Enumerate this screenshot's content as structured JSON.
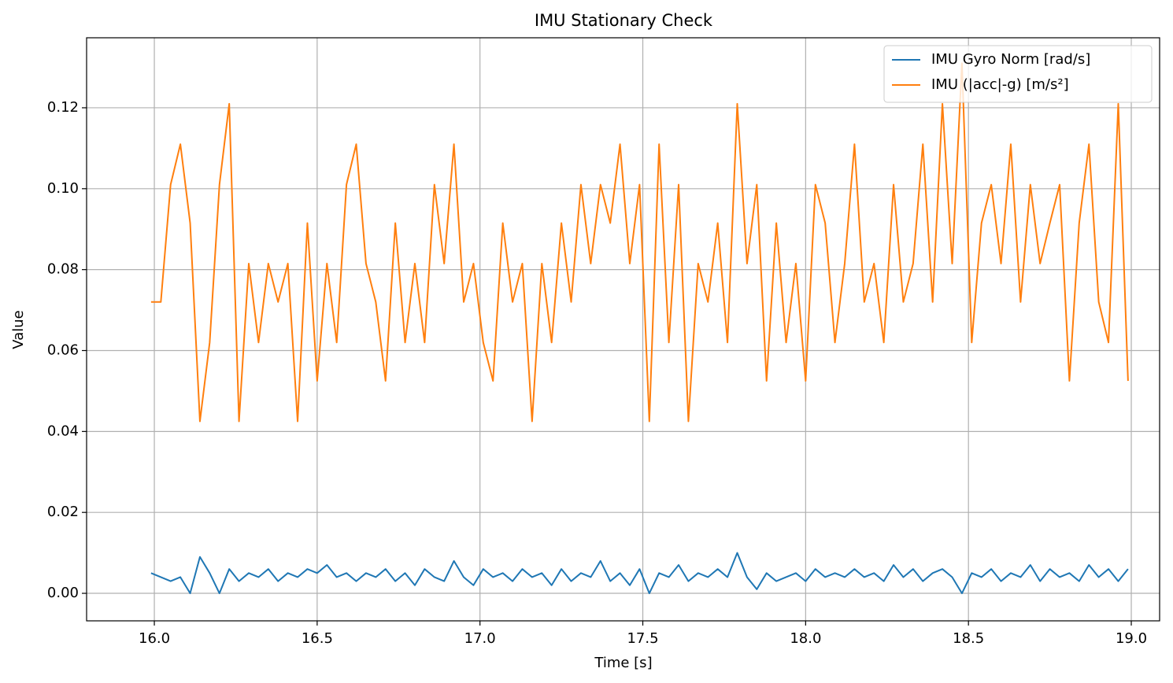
{
  "chart_data": {
    "type": "line",
    "title": "IMU Stationary Check",
    "x_label": "Time [s]",
    "y_label": "Value",
    "x": [
      15.99,
      16.02,
      16.05,
      16.08,
      16.11,
      16.14,
      16.17,
      16.2,
      16.23,
      16.26,
      16.29,
      16.32,
      16.35,
      16.38,
      16.41,
      16.44,
      16.47,
      16.5,
      16.53,
      16.56,
      16.59,
      16.62,
      16.65,
      16.68,
      16.71,
      16.74,
      16.77,
      16.8,
      16.83,
      16.86,
      16.89,
      16.92,
      16.95,
      16.98,
      17.01,
      17.04,
      17.07,
      17.1,
      17.13,
      17.16,
      17.19,
      17.22,
      17.25,
      17.28,
      17.31,
      17.34,
      17.37,
      17.4,
      17.43,
      17.46,
      17.49,
      17.52,
      17.55,
      17.58,
      17.61,
      17.64,
      17.67,
      17.7,
      17.73,
      17.76,
      17.79,
      17.82,
      17.85,
      17.88,
      17.91,
      17.94,
      17.97,
      18.0,
      18.03,
      18.06,
      18.09,
      18.12,
      18.15,
      18.18,
      18.21,
      18.24,
      18.27,
      18.3,
      18.33,
      18.36,
      18.39,
      18.42,
      18.45,
      18.48,
      18.51,
      18.54,
      18.57,
      18.6,
      18.63,
      18.66,
      18.69,
      18.72,
      18.75,
      18.78,
      18.81,
      18.84,
      18.87,
      18.9,
      18.93,
      18.96,
      18.99
    ],
    "series": [
      {
        "name": "IMU Gyro Norm [rad/s]",
        "color": "#1f77b4",
        "values": [
          0.005,
          0.004,
          0.003,
          0.004,
          0.0,
          0.009,
          0.005,
          0.0,
          0.006,
          0.003,
          0.005,
          0.004,
          0.006,
          0.003,
          0.005,
          0.004,
          0.006,
          0.005,
          0.007,
          0.004,
          0.005,
          0.003,
          0.005,
          0.004,
          0.006,
          0.003,
          0.005,
          0.002,
          0.006,
          0.004,
          0.003,
          0.008,
          0.004,
          0.002,
          0.006,
          0.004,
          0.005,
          0.003,
          0.006,
          0.004,
          0.005,
          0.002,
          0.006,
          0.003,
          0.005,
          0.004,
          0.008,
          0.003,
          0.005,
          0.002,
          0.006,
          0.0,
          0.005,
          0.004,
          0.007,
          0.003,
          0.005,
          0.004,
          0.006,
          0.004,
          0.01,
          0.004,
          0.001,
          0.005,
          0.003,
          0.004,
          0.005,
          0.003,
          0.006,
          0.004,
          0.005,
          0.004,
          0.006,
          0.004,
          0.005,
          0.003,
          0.007,
          0.004,
          0.006,
          0.003,
          0.005,
          0.006,
          0.004,
          0.0,
          0.005,
          0.004,
          0.006,
          0.003,
          0.005,
          0.004,
          0.007,
          0.003,
          0.006,
          0.004,
          0.005,
          0.003,
          0.007,
          0.004,
          0.006,
          0.003,
          0.006
        ]
      },
      {
        "name": "IMU (|acc|-g) [m/s²]",
        "color": "#ff7f0e",
        "values": [
          0.072,
          0.072,
          0.101,
          0.111,
          0.0915,
          0.0425,
          0.062,
          0.101,
          0.121,
          0.0425,
          0.0815,
          0.062,
          0.0815,
          0.072,
          0.0815,
          0.0425,
          0.0915,
          0.0525,
          0.0815,
          0.062,
          0.101,
          0.111,
          0.0815,
          0.072,
          0.0525,
          0.0915,
          0.062,
          0.0815,
          0.062,
          0.101,
          0.0815,
          0.111,
          0.072,
          0.0815,
          0.062,
          0.0525,
          0.0915,
          0.072,
          0.0815,
          0.0425,
          0.0815,
          0.062,
          0.0915,
          0.072,
          0.101,
          0.0815,
          0.101,
          0.0915,
          0.111,
          0.0815,
          0.101,
          0.0425,
          0.111,
          0.062,
          0.101,
          0.0425,
          0.0815,
          0.072,
          0.0915,
          0.062,
          0.121,
          0.0815,
          0.101,
          0.0525,
          0.0915,
          0.062,
          0.0815,
          0.0525,
          0.101,
          0.0915,
          0.062,
          0.0815,
          0.111,
          0.072,
          0.0815,
          0.062,
          0.101,
          0.072,
          0.0815,
          0.111,
          0.072,
          0.121,
          0.0815,
          0.131,
          0.062,
          0.0915,
          0.101,
          0.0815,
          0.111,
          0.072,
          0.101,
          0.0815,
          0.0915,
          0.101,
          0.0525,
          0.0915,
          0.111,
          0.072,
          0.062,
          0.121,
          0.0525
        ]
      }
    ],
    "xlim": [
      15.792,
      19.087
    ],
    "ylim": [
      -0.0068,
      0.1373
    ],
    "xticks": [
      {
        "value": 16,
        "label": "16.0"
      },
      {
        "value": 16.5,
        "label": "16.5"
      },
      {
        "value": 17,
        "label": "17.0"
      },
      {
        "value": 17.5,
        "label": "17.5"
      },
      {
        "value": 18,
        "label": "18.0"
      },
      {
        "value": 18.5,
        "label": "18.5"
      },
      {
        "value": 19,
        "label": "19.0"
      }
    ],
    "yticks": [
      {
        "value": 0,
        "label": "0.00"
      },
      {
        "value": 0.02,
        "label": "0.02"
      },
      {
        "value": 0.04,
        "label": "0.04"
      },
      {
        "value": 0.06,
        "label": "0.06"
      },
      {
        "value": 0.08,
        "label": "0.08"
      },
      {
        "value": 0.1,
        "label": "0.10"
      },
      {
        "value": 0.12,
        "label": "0.12"
      }
    ],
    "grid": true,
    "legend": "upper right"
  }
}
